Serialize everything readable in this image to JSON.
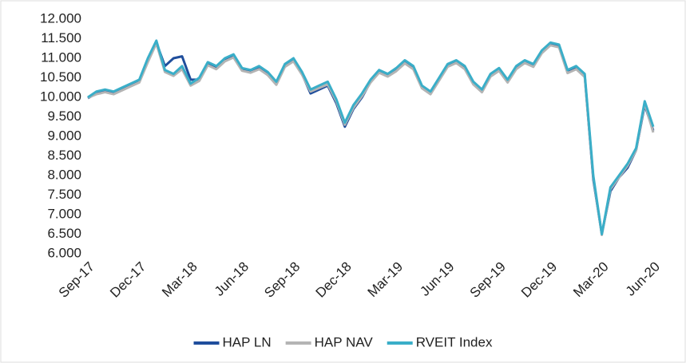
{
  "chart_data": {
    "type": "line",
    "categories": [
      "Sep-17",
      null,
      null,
      null,
      null,
      null,
      "Dec-17",
      null,
      null,
      null,
      null,
      null,
      "Mar-18",
      null,
      null,
      null,
      null,
      null,
      "Jun-18",
      null,
      null,
      null,
      null,
      null,
      "Sep-18",
      null,
      null,
      null,
      null,
      null,
      "Dec-18",
      null,
      null,
      null,
      null,
      null,
      "Mar-19",
      null,
      null,
      null,
      null,
      null,
      "Jun-19",
      null,
      null,
      null,
      null,
      null,
      "Sep-19",
      null,
      null,
      null,
      null,
      null,
      "Dec-19",
      null,
      null,
      null,
      null,
      null,
      "Mar-20",
      null,
      null,
      null,
      null,
      null,
      "Jun-20"
    ],
    "series": [
      {
        "name": "HAP LN",
        "color": "#1f4e9c",
        "values": [
          9980,
          10100,
          10150,
          10100,
          10200,
          10300,
          10400,
          10950,
          11400,
          10800,
          11000,
          11050,
          10450,
          10450,
          10850,
          10750,
          10950,
          11050,
          10700,
          10650,
          10750,
          10600,
          10350,
          10800,
          10950,
          10600,
          10100,
          10200,
          10300,
          9850,
          9250,
          9700,
          10000,
          10400,
          10650,
          10550,
          10700,
          10900,
          10750,
          10250,
          10100,
          10450,
          10800,
          10900,
          10750,
          10350,
          10150,
          10550,
          10700,
          10400,
          10750,
          10900,
          10800,
          11150,
          11350,
          11300,
          10650,
          10750,
          10550,
          7900,
          6500,
          7600,
          7950,
          8200,
          8650,
          9800,
          9150
        ]
      },
      {
        "name": "HAP NAV",
        "color": "#b4b4b4",
        "values": [
          9990,
          10080,
          10130,
          10080,
          10180,
          10280,
          10380,
          10900,
          11380,
          10650,
          10550,
          10720,
          10300,
          10420,
          10820,
          10720,
          10920,
          11020,
          10680,
          10630,
          10720,
          10570,
          10320,
          10780,
          10920,
          10580,
          10150,
          10240,
          10330,
          9900,
          9300,
          9730,
          10030,
          10380,
          10630,
          10530,
          10670,
          10870,
          10720,
          10230,
          10080,
          10430,
          10780,
          10880,
          10720,
          10330,
          10130,
          10530,
          10680,
          10380,
          10720,
          10880,
          10780,
          11130,
          11330,
          11280,
          10620,
          10720,
          10520,
          7950,
          6480,
          7650,
          7950,
          8250,
          8650,
          9850,
          9100
        ]
      },
      {
        "name": "RVEIT Index",
        "color": "#3aaec8",
        "values": [
          10000,
          10150,
          10200,
          10150,
          10250,
          10350,
          10450,
          11000,
          11450,
          10700,
          10600,
          10800,
          10350,
          10500,
          10900,
          10800,
          11000,
          11100,
          10750,
          10700,
          10800,
          10650,
          10400,
          10850,
          11000,
          10650,
          10200,
          10300,
          10400,
          9950,
          9350,
          9800,
          10100,
          10450,
          10700,
          10600,
          10750,
          10950,
          10800,
          10300,
          10150,
          10500,
          10850,
          10950,
          10800,
          10400,
          10200,
          10600,
          10750,
          10450,
          10800,
          10950,
          10850,
          11200,
          11400,
          11350,
          10700,
          10800,
          10600,
          8000,
          6500,
          7700,
          8000,
          8300,
          8700,
          9900,
          9250
        ]
      }
    ],
    "ylim": [
      6000,
      12000
    ],
    "yticks": [
      {
        "value": 6000,
        "label": "6.000"
      },
      {
        "value": 6500,
        "label": "6.500"
      },
      {
        "value": 7000,
        "label": "7.000"
      },
      {
        "value": 7500,
        "label": "7.500"
      },
      {
        "value": 8000,
        "label": "8.000"
      },
      {
        "value": 8500,
        "label": "8.500"
      },
      {
        "value": 9000,
        "label": "9.000"
      },
      {
        "value": 9500,
        "label": "9.500"
      },
      {
        "value": 10000,
        "label": "10.000"
      },
      {
        "value": 10500,
        "label": "10.500"
      },
      {
        "value": 11000,
        "label": "11.000"
      },
      {
        "value": 11500,
        "label": "11.500"
      },
      {
        "value": 12000,
        "label": "12.000"
      }
    ],
    "grid": false,
    "legend": "bottom"
  }
}
